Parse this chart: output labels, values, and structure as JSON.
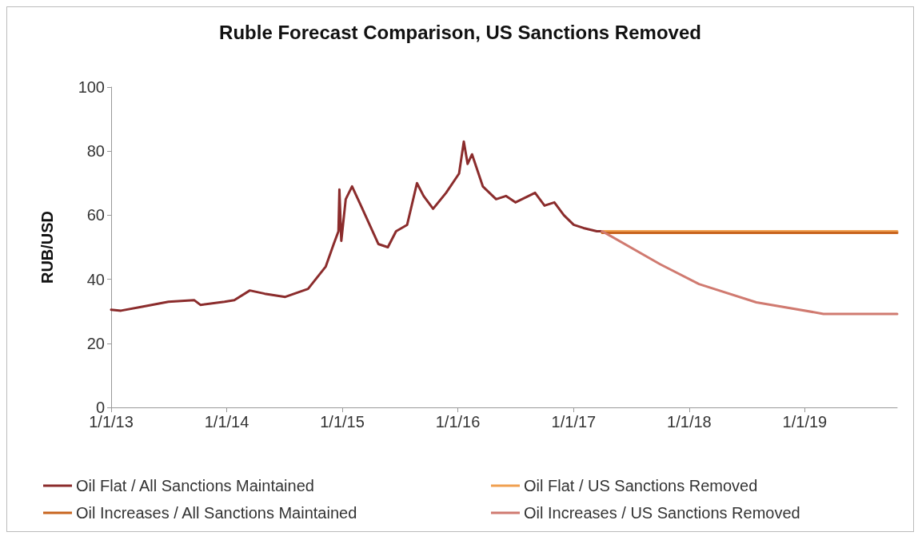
{
  "chart_data": {
    "type": "line",
    "title": "Ruble Forecast Comparison, US Sanctions Removed",
    "ylabel": "RUB/USD",
    "xlim": [
      "2013-01-01",
      "2019-10-20"
    ],
    "xticks": [
      {
        "value": "2013-01-01",
        "label": "1/1/13"
      },
      {
        "value": "2014-01-01",
        "label": "1/1/14"
      },
      {
        "value": "2015-01-01",
        "label": "1/1/15"
      },
      {
        "value": "2016-01-01",
        "label": "1/1/16"
      },
      {
        "value": "2017-01-01",
        "label": "1/1/17"
      },
      {
        "value": "2018-01-01",
        "label": "1/1/18"
      },
      {
        "value": "2019-01-01",
        "label": "1/1/19"
      }
    ],
    "ylim": [
      0,
      100
    ],
    "yticks": [
      0,
      20,
      40,
      60,
      80,
      100
    ],
    "grid": false,
    "legend": "bottom",
    "marker": "none",
    "line_style": "solid",
    "series": [
      {
        "name": "Oil Flat / All Sanctions Maintained",
        "color": "#8b2c2c",
        "x": [
          "2013-01-01",
          "2013-02-01",
          "2013-04-12",
          "2013-07-01",
          "2013-09-20",
          "2013-10-10",
          "2013-12-25",
          "2014-01-25",
          "2014-03-15",
          "2014-05-01",
          "2014-07-05",
          "2014-09-15",
          "2014-11-10",
          "2014-12-05",
          "2014-12-20",
          "2014-12-23",
          "2014-12-29",
          "2015-01-12",
          "2015-02-01",
          "2015-03-01",
          "2015-04-25",
          "2015-05-25",
          "2015-06-20",
          "2015-07-25",
          "2015-08-25",
          "2015-09-15",
          "2015-10-15",
          "2015-11-25",
          "2016-01-05",
          "2016-01-20",
          "2016-02-01",
          "2016-02-15",
          "2016-03-20",
          "2016-05-01",
          "2016-06-01",
          "2016-07-01",
          "2016-09-01",
          "2016-10-01",
          "2016-11-01",
          "2016-12-01",
          "2017-01-01",
          "2017-02-01",
          "2017-03-15",
          "2017-04-01"
        ],
        "values": [
          30.5,
          30.2,
          31.5,
          33,
          33.5,
          32,
          33,
          33.5,
          36.5,
          35.5,
          34.5,
          37,
          44,
          51,
          55,
          68,
          52,
          65,
          69,
          63,
          51,
          50,
          55,
          57,
          70,
          66,
          62,
          67,
          73,
          83,
          76,
          79,
          69,
          65,
          66,
          64,
          67,
          63,
          64,
          60,
          57,
          56,
          55,
          55
        ]
      },
      {
        "name": "Oil Flat / US Sanctions Removed",
        "color": "#f0a050",
        "x": [
          "2017-04-01",
          "2019-10-20"
        ],
        "values": [
          55,
          55
        ]
      },
      {
        "name": "Oil Increases / All Sanctions Maintained",
        "color": "#c8641e",
        "x": [
          "2017-04-01",
          "2019-10-20"
        ],
        "values": [
          54.5,
          54.5
        ]
      },
      {
        "name": "Oil Increases / US Sanctions Removed",
        "color": "#d07a70",
        "x": [
          "2017-04-01",
          "2017-10-01",
          "2018-02-01",
          "2018-08-01",
          "2019-03-01",
          "2019-10-20"
        ],
        "values": [
          55,
          44.7,
          38.5,
          32.8,
          29.2,
          29.2
        ]
      }
    ]
  }
}
